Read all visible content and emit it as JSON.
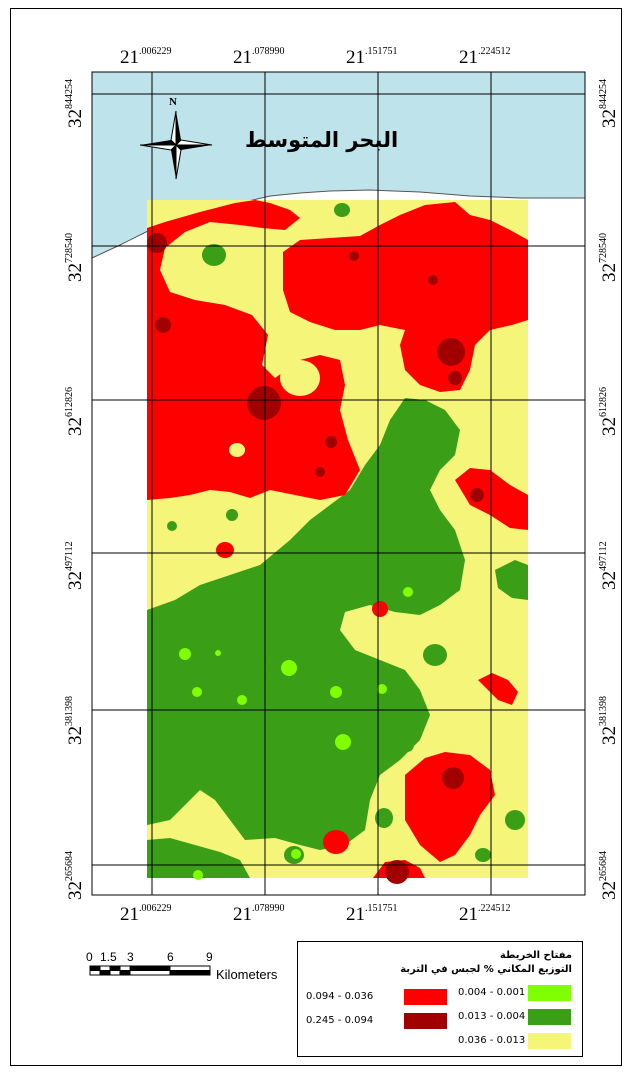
{
  "sea_label": "البحر المتوسط",
  "north_label": "N",
  "longitude_ticks": [
    {
      "deg": "21",
      "min": ".006229"
    },
    {
      "deg": "21",
      "min": ".078990"
    },
    {
      "deg": "21",
      "min": ".151751"
    },
    {
      "deg": "21",
      "min": ".224512"
    }
  ],
  "latitude_ticks": [
    {
      "deg": "32",
      "min": "844254"
    },
    {
      "deg": "32",
      "min": "728540"
    },
    {
      "deg": "32",
      "min": "612826"
    },
    {
      "deg": "32",
      "min": "497112"
    },
    {
      "deg": "32",
      "min": "381398"
    },
    {
      "deg": "32",
      "min": "265684"
    }
  ],
  "scale_bar": {
    "ticks": [
      "0",
      "1.5",
      "3",
      "6",
      "9"
    ],
    "units": "Kilometers"
  },
  "legend": {
    "title": "مفتاح الخريطة",
    "subtitle": "التوزيع المكاني % لجبس في التربة",
    "items": [
      {
        "range": "0.004 - 0.001",
        "color": "#7fff00"
      },
      {
        "range": "0.013 - 0.004",
        "color": "#3a9e17"
      },
      {
        "range": "0.036 - 0.013",
        "color": "#f5f57a"
      },
      {
        "range": "0.094 - 0.036",
        "color": "#ff0000"
      },
      {
        "range": "0.245 - 0.094",
        "color": "#a10000"
      }
    ]
  },
  "colors": {
    "sea": "#bfe3ea",
    "class_lightgreen": "#7fff00",
    "class_green": "#3a9e17",
    "class_yellow": "#f5f57a",
    "class_red": "#ff0000",
    "class_darkred": "#a10000"
  }
}
